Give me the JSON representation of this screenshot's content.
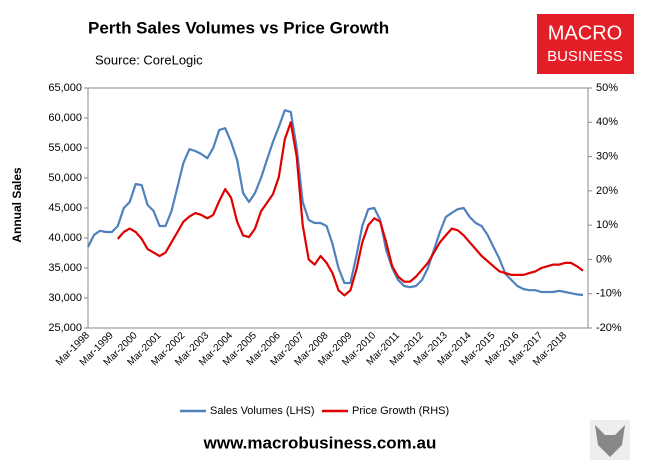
{
  "chart_data": {
    "type": "line",
    "title": "Perth Sales Volumes vs Price Growth",
    "subtitle": "Source: CoreLogic",
    "y_label": "Annual Sales",
    "logo": [
      "MACRO",
      "BUSINESS"
    ],
    "footer": "www.macrobusiness.com.au",
    "categories": [
      "Mar-1998",
      null,
      null,
      null,
      "Mar-1999",
      null,
      null,
      null,
      "Mar-2000",
      null,
      null,
      null,
      "Mar-2001",
      null,
      null,
      null,
      "Mar-2002",
      null,
      null,
      null,
      "Mar-2003",
      null,
      null,
      null,
      "Mar-2004",
      null,
      null,
      null,
      "Mar-2005",
      null,
      null,
      null,
      "Mar-2006",
      null,
      null,
      null,
      "Mar-2007",
      null,
      null,
      null,
      "Mar-2008",
      null,
      null,
      null,
      "Mar-2009",
      null,
      null,
      null,
      "Mar-2010",
      null,
      null,
      null,
      "Mar-2011",
      null,
      null,
      null,
      "Mar-2012",
      null,
      null,
      null,
      "Mar-2013",
      null,
      null,
      null,
      "Mar-2014",
      null,
      null,
      null,
      "Mar-2015",
      null,
      null,
      null,
      "Mar-2016",
      null,
      null,
      null,
      "Mar-2017",
      null,
      null,
      null,
      "Mar-2018",
      null,
      null,
      null
    ],
    "series": [
      {
        "name": "Sales Volumes (LHS)",
        "color": "#4f81bd",
        "axis": "y",
        "values": [
          38500,
          40500,
          41200,
          41000,
          41000,
          42000,
          45000,
          46000,
          49000,
          48800,
          45500,
          44500,
          42000,
          42000,
          44500,
          48500,
          52500,
          54800,
          54500,
          54000,
          53300,
          55000,
          58000,
          58300,
          56000,
          53000,
          47500,
          46000,
          47500,
          50000,
          53000,
          56000,
          58500,
          61300,
          61000,
          55000,
          46000,
          43000,
          42500,
          42500,
          42000,
          39000,
          35000,
          32500,
          32500,
          37000,
          42000,
          44800,
          45000,
          43000,
          38000,
          35000,
          33000,
          32000,
          31800,
          32000,
          33000,
          35000,
          38000,
          41000,
          43500,
          44200,
          44800,
          45000,
          43500,
          42500,
          42000,
          40500,
          38500,
          36500,
          34000,
          33000,
          32000,
          31500,
          31300,
          31300,
          31000,
          31000,
          31000,
          31200,
          31000,
          30800,
          30600,
          30500
        ]
      },
      {
        "name": "Price Growth (RHS)",
        "color": "#e00000",
        "axis": "y2",
        "values": [
          null,
          null,
          null,
          null,
          null,
          6,
          8,
          9,
          8,
          6,
          3,
          2,
          1,
          2,
          5,
          8,
          11,
          12.5,
          13.5,
          13,
          12,
          13,
          17,
          20.5,
          18,
          11,
          7,
          6.5,
          9,
          14,
          16.5,
          19,
          24,
          35,
          40,
          30,
          10,
          0,
          -1.5,
          1,
          -1,
          -4,
          -9,
          -10.5,
          -9,
          -3,
          5,
          10,
          12,
          11,
          5,
          -2,
          -5,
          -6.5,
          -6.5,
          -5,
          -3,
          -1,
          2,
          5,
          7,
          9,
          8.5,
          7,
          5,
          3,
          1,
          -0.5,
          -2,
          -3.5,
          -4,
          -4.5,
          -4.5,
          -4.5,
          -4,
          -3.5,
          -2.5,
          -2,
          -1.5,
          -1.5,
          -1,
          -1,
          -2,
          -3.3
        ]
      }
    ],
    "ylim": [
      25000,
      65000
    ],
    "yticks": [
      {
        "value": 25000,
        "label": "25,000"
      },
      {
        "value": 30000,
        "label": "30,000"
      },
      {
        "value": 35000,
        "label": "35,000"
      },
      {
        "value": 40000,
        "label": "40,000"
      },
      {
        "value": 45000,
        "label": "45,000"
      },
      {
        "value": 50000,
        "label": "50,000"
      },
      {
        "value": 55000,
        "label": "55,000"
      },
      {
        "value": 60000,
        "label": "60,000"
      },
      {
        "value": 65000,
        "label": "65,000"
      }
    ],
    "y2lim": [
      -20,
      50
    ],
    "y2ticks": [
      {
        "value": -20,
        "label": "-20%"
      },
      {
        "value": -10,
        "label": "-10%"
      },
      {
        "value": 0,
        "label": "0%"
      },
      {
        "value": 10,
        "label": "10%"
      },
      {
        "value": 20,
        "label": "20%"
      },
      {
        "value": 30,
        "label": "30%"
      },
      {
        "value": 40,
        "label": "40%"
      },
      {
        "value": 50,
        "label": "50%"
      }
    ],
    "legend": "bottom"
  }
}
